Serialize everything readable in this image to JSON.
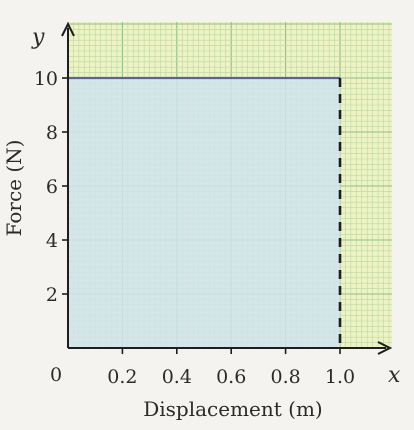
{
  "chart_data": {
    "type": "line",
    "title": "",
    "xlabel": "Displacement (m)",
    "ylabel": "Force (N)",
    "x_axis_letter": "x",
    "y_axis_letter": "y",
    "origin_label": "0",
    "xlim": [
      0,
      1.2
    ],
    "ylim": [
      0,
      11
    ],
    "x_ticks": [
      "0.2",
      "0.4",
      "0.6",
      "0.8",
      "1.0"
    ],
    "y_ticks": [
      "2",
      "4",
      "6",
      "8",
      "10"
    ],
    "grid": true,
    "series": [
      {
        "x": [
          0,
          1.0
        ],
        "y": [
          10,
          10
        ]
      }
    ],
    "shaded_area": {
      "x": [
        0,
        1.0
      ],
      "y": [
        0,
        10
      ]
    },
    "dashed_line": {
      "x": [
        1.0,
        1.0
      ],
      "y": [
        0,
        10
      ]
    },
    "colors": {
      "grid_paper": "#eef3c4",
      "grid_minor": "#b9d6a4",
      "grid_major": "#8fbf8a",
      "shading": "#cfe3ef",
      "series_line": "#5e5f9c",
      "axis": "#1e1e1e"
    }
  }
}
